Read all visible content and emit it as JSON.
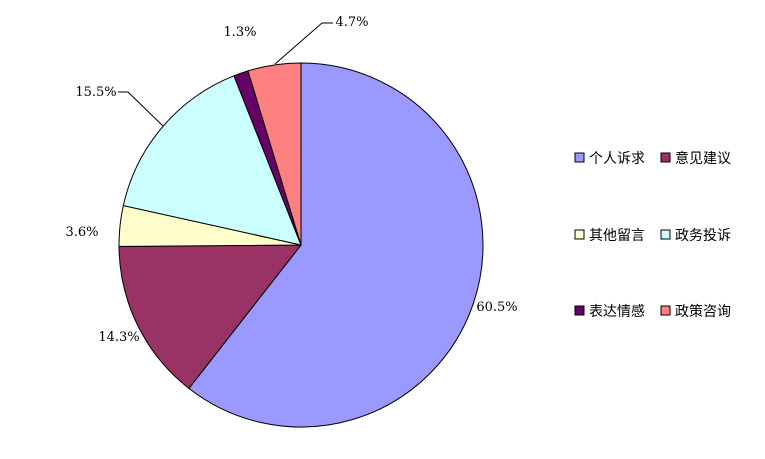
{
  "chart_data": {
    "type": "pie",
    "title": "",
    "start_angle_deg": 90,
    "direction": "clockwise",
    "slices": [
      {
        "label": "个人诉求",
        "value": 60.5,
        "display": "60.5%",
        "color": "#9999ff"
      },
      {
        "label": "意见建议",
        "value": 14.3,
        "display": "14.3%",
        "color": "#993366"
      },
      {
        "label": "其他留言",
        "value": 3.6,
        "display": "3.6%",
        "color": "#ffffcc"
      },
      {
        "label": "政务投诉",
        "value": 15.5,
        "display": "15.5%",
        "color": "#ccffff"
      },
      {
        "label": "表达情感",
        "value": 1.3,
        "display": "1.3%",
        "color": "#660066"
      },
      {
        "label": "政策咨询",
        "value": 4.7,
        "display": "4.7%",
        "color": "#ff8080"
      }
    ],
    "legend": {
      "placement": "right",
      "columns": 2,
      "items": [
        "个人诉求",
        "意见建议",
        "其他留言",
        "政务投诉",
        "表达情感",
        "政策咨询"
      ]
    }
  }
}
